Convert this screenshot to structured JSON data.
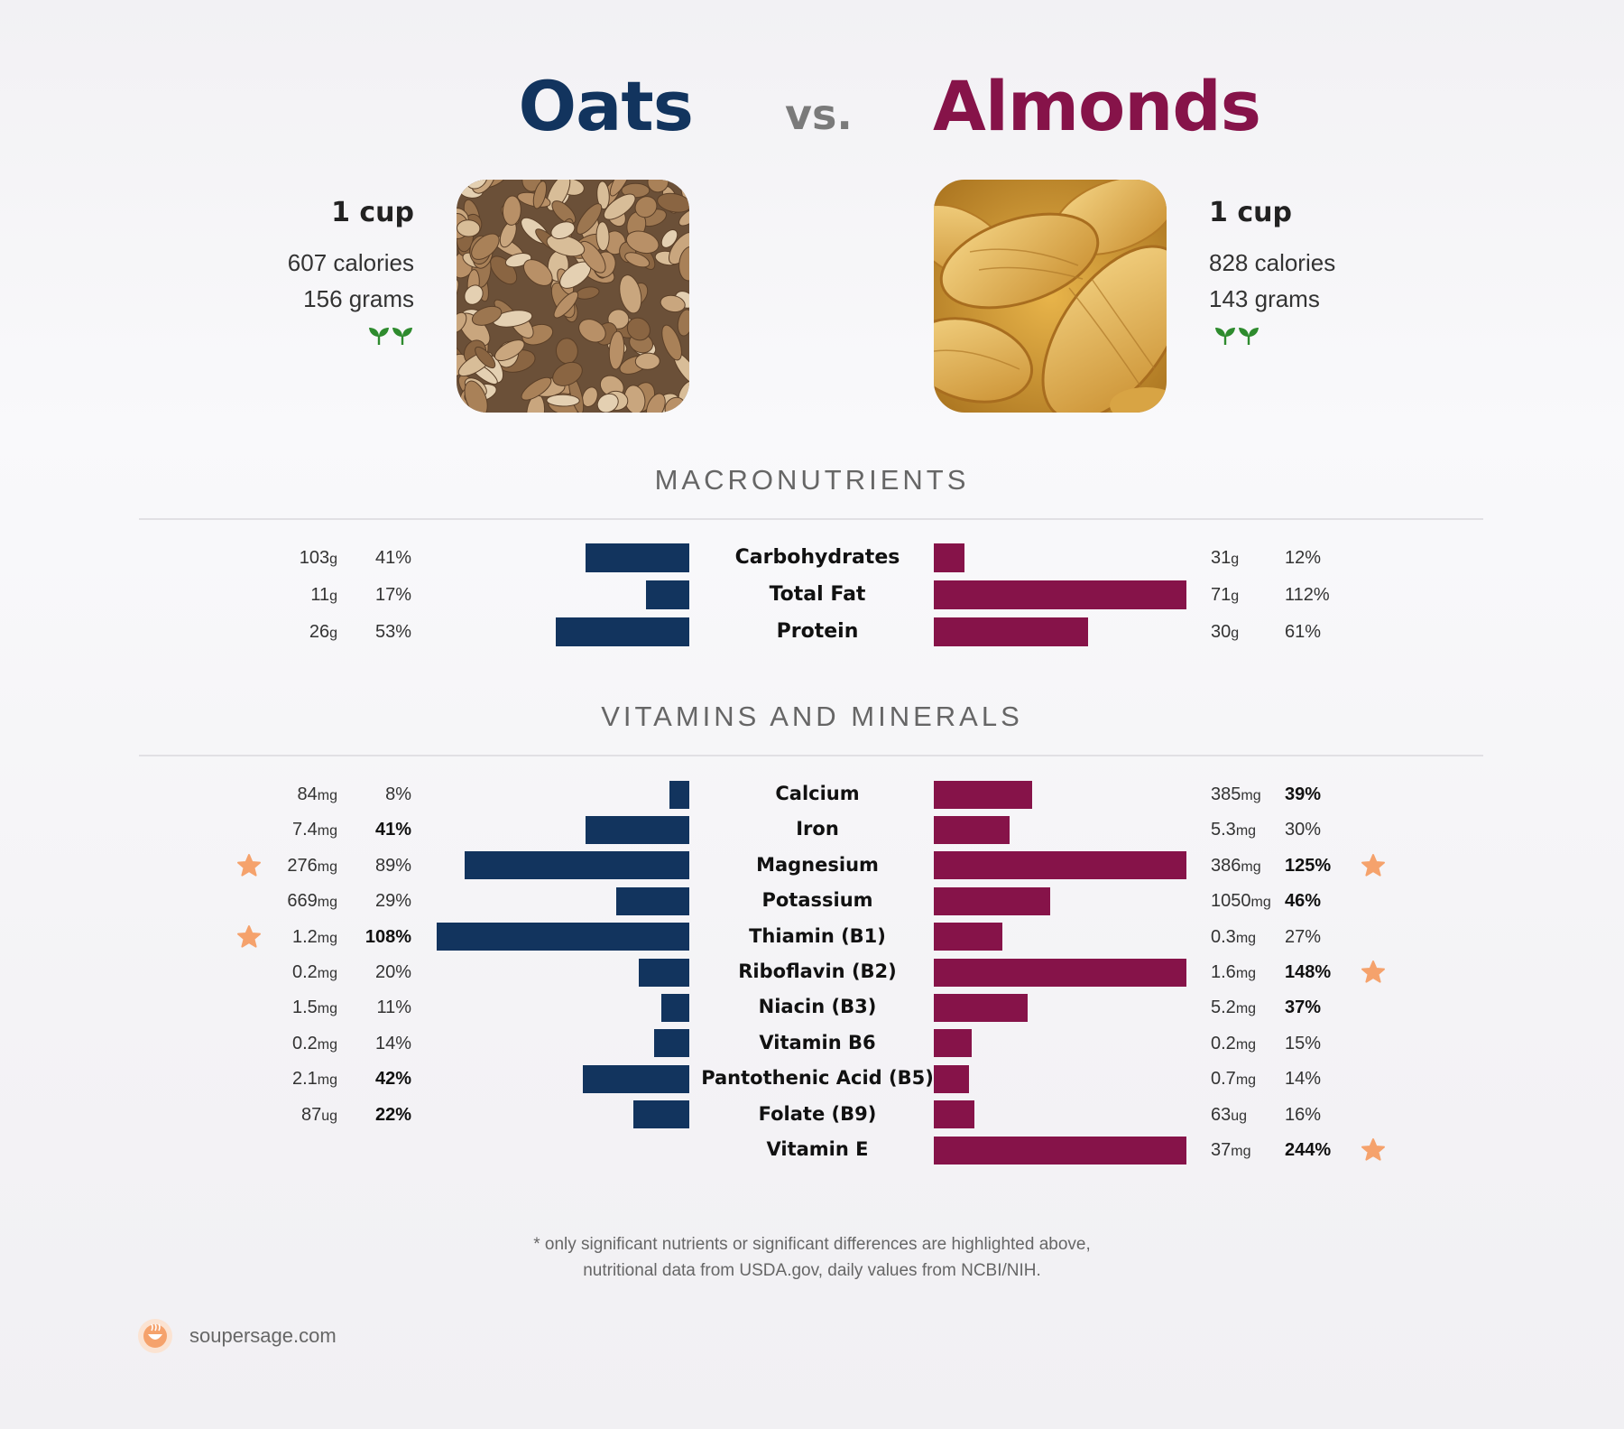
{
  "header": {
    "left_title": "Oats",
    "vs": "vs.",
    "right_title": "Almonds"
  },
  "colors": {
    "left": "#12345e",
    "right": "#861349",
    "star": "#f5a26c",
    "leaf": "#2e8b2e"
  },
  "left_food": {
    "serving": "1 cup",
    "calories": "607 calories",
    "grams": "156 grams",
    "icons": [
      "leaf-icon",
      "leaf-icon"
    ]
  },
  "right_food": {
    "serving": "1 cup",
    "calories": "828 calories",
    "grams": "143 grams",
    "icons": [
      "leaf-icon",
      "leaf-icon"
    ]
  },
  "sections": {
    "macros": "MACRONUTRIENTS",
    "vitamins": "VITAMINS AND MINERALS"
  },
  "footnote": {
    "line1": "* only significant nutrients or significant differences are highlighted above,",
    "line2": "nutritional data from USDA.gov, daily values from NCBI/NIH."
  },
  "brand": {
    "text": "soupersage.com",
    "icon": "soupersage-logo-icon"
  },
  "chart_data": [
    {
      "type": "bar",
      "orientation": "horizontal-diverging",
      "title": "MACRONUTRIENTS",
      "categories": [
        "Carbohydrates",
        "Total Fat",
        "Protein"
      ],
      "series": [
        {
          "name": "Oats",
          "amounts": [
            "103",
            "11",
            "26"
          ],
          "units": [
            "g",
            "g",
            "g"
          ],
          "values": [
            41,
            17,
            53
          ],
          "labels": [
            "41%",
            "17%",
            "53%"
          ],
          "bold": [
            false,
            false,
            false
          ],
          "stars": [
            false,
            false,
            false
          ]
        },
        {
          "name": "Almonds",
          "amounts": [
            "31",
            "71",
            "30"
          ],
          "units": [
            "g",
            "g",
            "g"
          ],
          "values": [
            12,
            112,
            61
          ],
          "labels": [
            "12%",
            "112%",
            "61%"
          ],
          "bold": [
            false,
            false,
            false
          ],
          "stars": [
            false,
            false,
            false
          ]
        }
      ]
    },
    {
      "type": "bar",
      "orientation": "horizontal-diverging",
      "title": "VITAMINS AND MINERALS",
      "categories": [
        "Calcium",
        "Iron",
        "Magnesium",
        "Potassium",
        "Thiamin (B1)",
        "Riboflavin (B2)",
        "Niacin (B3)",
        "Vitamin B6",
        "Pantothenic Acid (B5)",
        "Folate (B9)",
        "Vitamin E"
      ],
      "series": [
        {
          "name": "Oats",
          "amounts": [
            "84",
            "7.4",
            "276",
            "669",
            "1.2",
            "0.2",
            "1.5",
            "0.2",
            "2.1",
            "87",
            null
          ],
          "units": [
            "mg",
            "mg",
            "mg",
            "mg",
            "mg",
            "mg",
            "mg",
            "mg",
            "mg",
            "ug",
            null
          ],
          "values": [
            8,
            41,
            89,
            29,
            108,
            20,
            11,
            14,
            42,
            22,
            null
          ],
          "labels": [
            "8%",
            "41%",
            "89%",
            "29%",
            "108%",
            "20%",
            "11%",
            "14%",
            "42%",
            "22%",
            null
          ],
          "bold": [
            false,
            true,
            false,
            false,
            true,
            false,
            false,
            false,
            true,
            true,
            false
          ],
          "stars": [
            false,
            false,
            true,
            false,
            true,
            false,
            false,
            false,
            false,
            false,
            false
          ]
        },
        {
          "name": "Almonds",
          "amounts": [
            "385",
            "5.3",
            "386",
            "1050",
            "0.3",
            "1.6",
            "5.2",
            "0.2",
            "0.7",
            "63",
            "37"
          ],
          "units": [
            "mg",
            "mg",
            "mg",
            "mg",
            "mg",
            "mg",
            "mg",
            "mg",
            "mg",
            "ug",
            "mg"
          ],
          "values": [
            39,
            30,
            125,
            46,
            27,
            148,
            37,
            15,
            14,
            16,
            244
          ],
          "labels": [
            "39%",
            "30%",
            "125%",
            "46%",
            "27%",
            "148%",
            "37%",
            "15%",
            "14%",
            "16%",
            "244%"
          ],
          "bold": [
            true,
            false,
            true,
            true,
            false,
            true,
            true,
            false,
            false,
            false,
            true
          ],
          "stars": [
            false,
            false,
            true,
            false,
            false,
            true,
            false,
            false,
            false,
            false,
            true
          ]
        }
      ]
    }
  ]
}
